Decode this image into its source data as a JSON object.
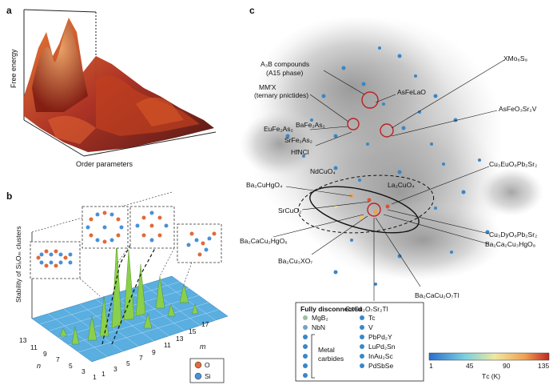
{
  "panel_a": {
    "letter": "a",
    "ylabel": "Free energy",
    "xlabel": "Order parameters"
  },
  "panel_b": {
    "letter": "b",
    "ylabel": "Stability of SiₓOₘ clusters",
    "n_label": "n",
    "m_label": "m",
    "n_ticks": [
      "13",
      "11",
      "9",
      "7",
      "5",
      "3",
      "1"
    ],
    "m_ticks": [
      "1",
      "3",
      "5",
      "7",
      "9",
      "11",
      "13",
      "15",
      "17"
    ],
    "legend": [
      {
        "symbol": "O",
        "color": "#e06a3a"
      },
      {
        "symbol": "Si",
        "color": "#4a90d9"
      }
    ]
  },
  "panel_c": {
    "letter": "c",
    "labels": {
      "a3b": "A₃B compounds",
      "a15": "(A15 phase)",
      "mmx": "MM′X",
      "ternary": "(ternary pnictides)",
      "asfelao": "AsFeLaO",
      "xmo": "XMo₆S₈",
      "asfeo": "AsFeO₃Sr₂V",
      "eufe": "EuFe₂As₂",
      "bafe": "BaFe₂As₂",
      "srfe": "SrFe₂As₂",
      "hfncl": "HfNCl",
      "ndcuo": "NdCuO₄",
      "ba2cuhgo": "Ba₂CuHgO₄",
      "la2cuo4": "La₂CuO₄",
      "cu3euo": "Cu₃EuO₈Pb₂Sr₂",
      "srcuo2": "SrCuO₂",
      "cu3dyo": "Cu₃DyO₈Pb₂Sr₂",
      "ba2ca2cu3hgo8": "Ba₂Ca₂Cu₃HgO₈",
      "ba2cacu2hgo6": "Ba₂CaCu₂HgO₆",
      "ba2cu3xo7": "Ba₂Cu₃XO₇",
      "ba2cacu2o7tl": "Ba₂CaCu₂O₇Tl",
      "cacu2o7": "CaCu₂O₇Sr₂Tl"
    },
    "disconnected": {
      "title": "Fully disconnected",
      "left": [
        "MgB₂",
        "NbN"
      ],
      "metal_carbides": "Metal carbides",
      "right": [
        "Tc",
        "V",
        "PbPd₂Y",
        "LuPd₂Sn",
        "InAu₂Sc",
        "PdSbSe"
      ]
    },
    "colorbar": {
      "ticks": [
        "1",
        "45",
        "90",
        "135"
      ],
      "label": "Tᴄ (K)"
    }
  }
}
